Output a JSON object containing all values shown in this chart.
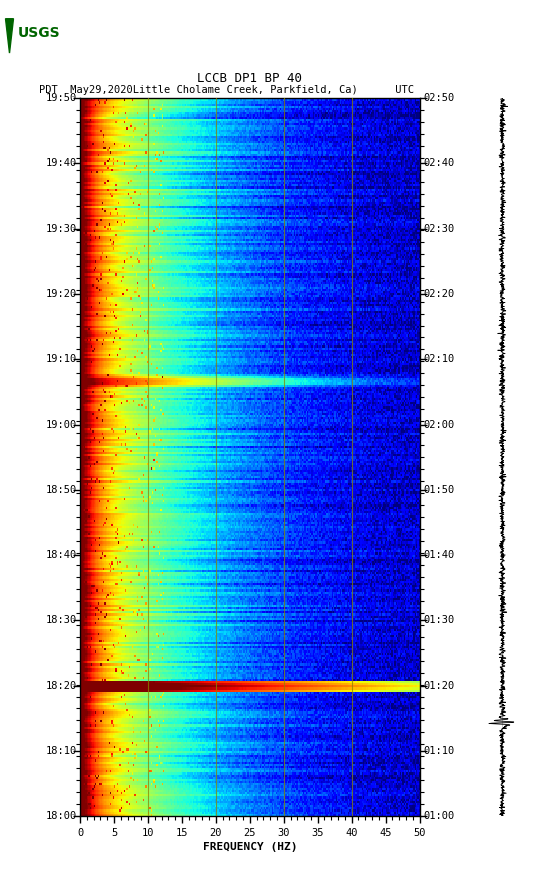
{
  "title_line1": "LCCB DP1 BP 40",
  "title_line2": "PDT  May29,2020Little Cholame Creek, Parkfield, Ca)      UTC",
  "xlabel": "FREQUENCY (HZ)",
  "freq_min": 0,
  "freq_max": 50,
  "freq_ticks": [
    0,
    5,
    10,
    15,
    20,
    25,
    30,
    35,
    40,
    45,
    50
  ],
  "time_labels_left": [
    "18:00",
    "18:10",
    "18:20",
    "18:30",
    "18:40",
    "18:50",
    "19:00",
    "19:10",
    "19:20",
    "19:30",
    "19:40",
    "19:50"
  ],
  "time_labels_right": [
    "01:00",
    "01:10",
    "01:20",
    "01:30",
    "01:40",
    "01:50",
    "02:00",
    "02:10",
    "02:20",
    "02:30",
    "02:40",
    "02:50"
  ],
  "vertical_lines_freq": [
    10,
    20,
    30,
    40
  ],
  "colormap": "jet",
  "background_color": "#ffffff",
  "fig_width": 5.52,
  "fig_height": 8.92,
  "n_time": 330,
  "n_freq": 250,
  "event_time_index": 270,
  "event_time_index2": 130
}
